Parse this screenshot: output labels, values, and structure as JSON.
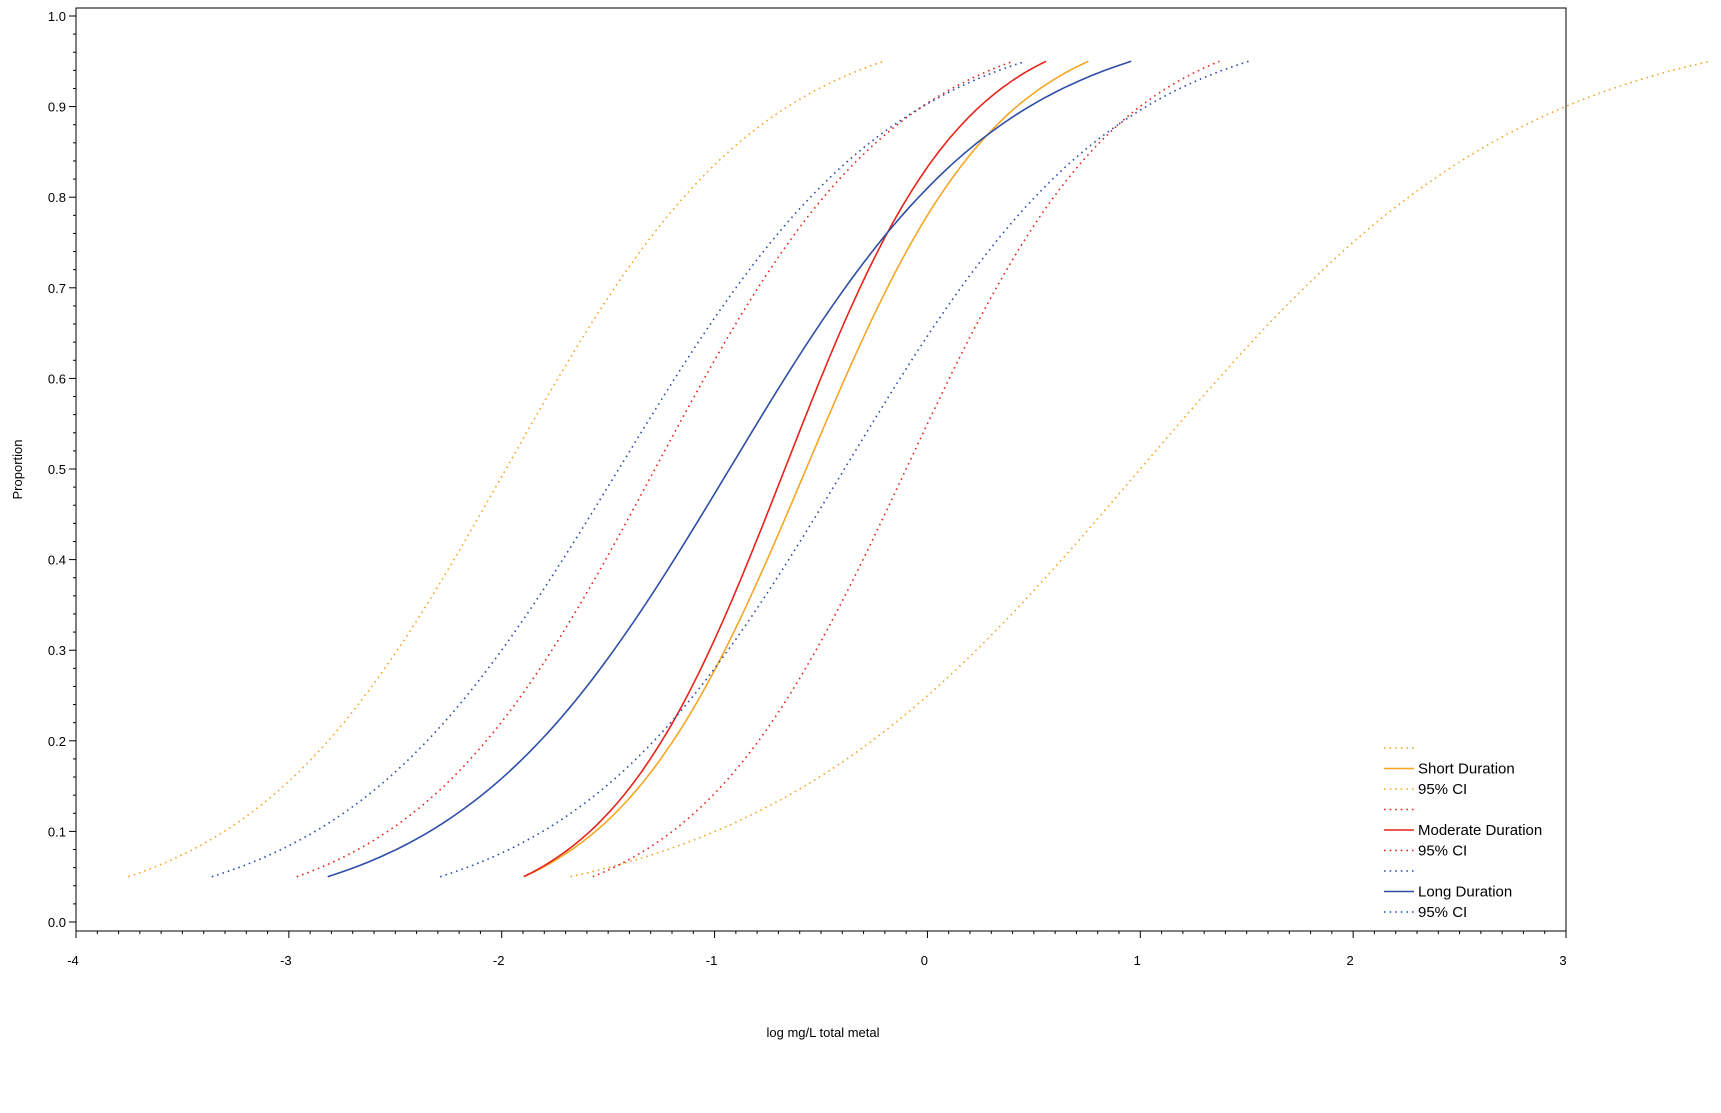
{
  "chart_data": {
    "type": "line",
    "title": "",
    "xlabel": "log mg/L total metal",
    "ylabel": "Proportion",
    "xlim": [
      -4,
      3
    ],
    "ylim": [
      0.0,
      1.0
    ],
    "x_ticks": [
      "-4",
      "-3",
      "-2",
      "-1",
      "0",
      "1",
      "2",
      "3"
    ],
    "y_ticks": [
      "0.0",
      "0.1",
      "0.2",
      "0.3",
      "0.4",
      "0.5",
      "0.6",
      "0.7",
      "0.8",
      "0.9",
      "1.0"
    ],
    "grid": false,
    "legend_position": "bottom-right",
    "x_scale": "linear",
    "p_range": [
      0.05,
      0.95
    ],
    "series": [
      {
        "name": "Short Duration",
        "style": "solid",
        "color": "#f5a623",
        "ld50": -0.57,
        "slope": 2.22
      },
      {
        "name": "95% CI",
        "style": "dotted",
        "color": "#f5a623",
        "ld50": -1.98,
        "slope": 1.66
      },
      {
        "name": "95% CI",
        "style": "dotted",
        "color": "#f5a623",
        "ld50": 1.0,
        "slope": 1.1
      },
      {
        "name": "Moderate Duration",
        "style": "solid",
        "color": "#e8231a",
        "ld50": -0.67,
        "slope": 2.4
      },
      {
        "name": "95% CI",
        "style": "dotted",
        "color": "#e8231a",
        "ld50": -1.28,
        "slope": 1.75
      },
      {
        "name": "95% CI",
        "style": "dotted",
        "color": "#e8231a",
        "ld50": -0.1,
        "slope": 2.0
      },
      {
        "name": "Long Duration",
        "style": "solid",
        "color": "#2e4ea8",
        "ld50": -0.93,
        "slope": 1.56
      },
      {
        "name": "95% CI",
        "style": "dotted",
        "color": "#2e4ea8",
        "ld50": -1.45,
        "slope": 1.54
      },
      {
        "name": "95% CI",
        "style": "dotted",
        "color": "#2e4ea8",
        "ld50": -0.39,
        "slope": 1.55
      }
    ],
    "legend": [
      {
        "label": "",
        "style": "dotted",
        "color": "#f5a623"
      },
      {
        "label": "Short Duration",
        "style": "solid",
        "color": "#f5a623"
      },
      {
        "label": "95% CI",
        "style": "dotted",
        "color": "#f5a623"
      },
      {
        "label": "",
        "style": "dotted",
        "color": "#e8231a"
      },
      {
        "label": "Moderate Duration",
        "style": "solid",
        "color": "#e8231a"
      },
      {
        "label": "95% CI",
        "style": "dotted",
        "color": "#e8231a"
      },
      {
        "label": "",
        "style": "dotted",
        "color": "#2e4ea8"
      },
      {
        "label": "Long Duration",
        "style": "solid",
        "color": "#2e4ea8"
      },
      {
        "label": "95% CI",
        "style": "dotted",
        "color": "#2e4ea8"
      }
    ]
  }
}
